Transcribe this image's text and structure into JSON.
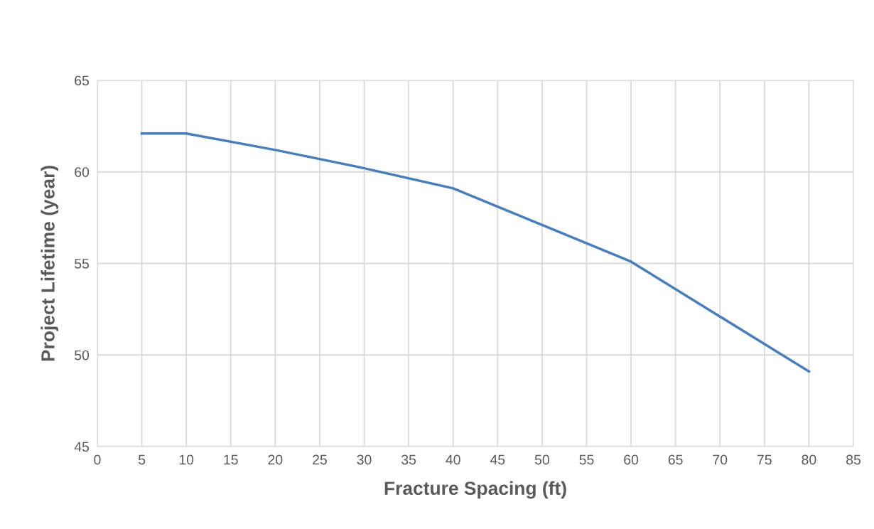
{
  "chart_data": {
    "type": "line",
    "xlabel": "Fracture Spacing (ft)",
    "ylabel": "Project Lifetime (year)",
    "x": [
      5,
      10,
      20,
      30,
      40,
      50,
      60,
      70,
      80
    ],
    "series": [
      {
        "color": "#4a7ebb",
        "values": [
          62.1,
          62.1,
          61.2,
          60.2,
          59.1,
          57.1,
          55.1,
          52.1,
          49.1
        ]
      }
    ],
    "xlim": [
      0,
      85
    ],
    "xticks": [
      0,
      5,
      10,
      15,
      20,
      25,
      30,
      35,
      40,
      45,
      50,
      55,
      60,
      65,
      70,
      75,
      80,
      85
    ],
    "ylim": [
      45,
      65
    ],
    "yticks": [
      45,
      50,
      55,
      60,
      65
    ],
    "grid": true,
    "marker": "none",
    "line_style": "solid"
  }
}
